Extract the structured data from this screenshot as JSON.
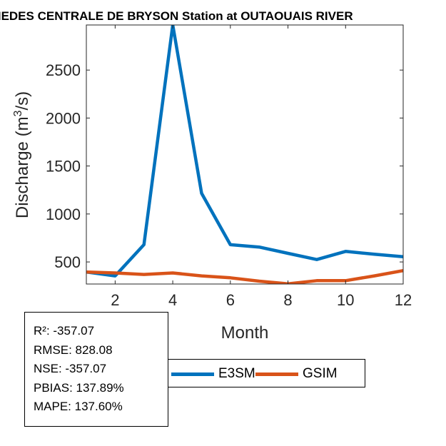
{
  "chart_data": {
    "type": "line",
    "title": "MEDES CENTRALE DE BRYSON  Station at  OUTAOUAIS RIVER",
    "xlabel": "Month",
    "ylabel": "Discharge (m³/s)",
    "ylabel_parts": {
      "main": "Discharge (m",
      "sup": "3",
      "end": "/s)"
    },
    "x": [
      1,
      2,
      3,
      4,
      5,
      6,
      7,
      8,
      9,
      10,
      11,
      12
    ],
    "xlim": [
      1,
      12
    ],
    "ylim": [
      270,
      2970
    ],
    "xticks": [
      2,
      4,
      6,
      8,
      10,
      12
    ],
    "yticks": [
      500,
      1000,
      1500,
      2000,
      2500
    ],
    "grid": false,
    "series": [
      {
        "name": "E3SM",
        "color": "#0072BD",
        "values": [
          395,
          355,
          680,
          2970,
          1215,
          680,
          655,
          590,
          525,
          610,
          580,
          555
        ]
      },
      {
        "name": "GSIM",
        "color": "#D95319",
        "values": [
          395,
          385,
          370,
          385,
          355,
          335,
          300,
          272,
          305,
          305,
          355,
          410
        ]
      }
    ]
  },
  "stats": [
    "R²: -357.07",
    "RMSE: 828.08",
    "NSE: -357.07",
    "PBIAS: 137.89%",
    "MAPE: 137.60%"
  ],
  "legend": [
    {
      "label": "E3SM",
      "color": "#0072BD"
    },
    {
      "label": "GSIM",
      "color": "#D95319"
    }
  ]
}
